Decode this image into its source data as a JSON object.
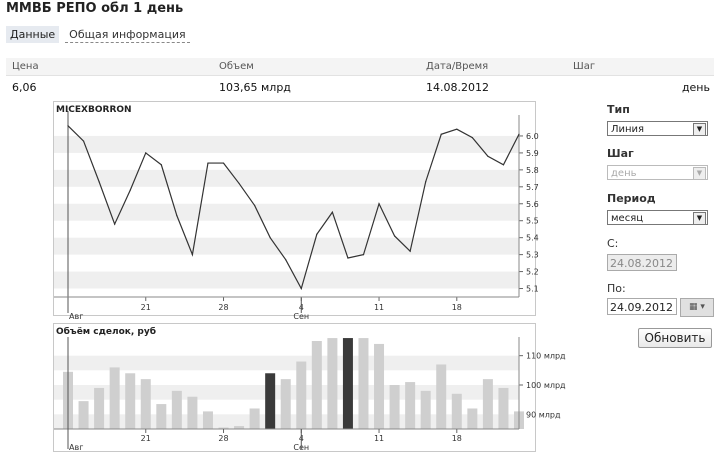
{
  "page": {
    "title": "ММВБ РЕПО обл 1 день",
    "tabs": [
      {
        "label": "Данные",
        "active": true
      },
      {
        "label": "Общая информация",
        "active": false
      }
    ]
  },
  "stats": {
    "headers": [
      "Цена",
      "Объем",
      "Дата/Время",
      "Шаг"
    ],
    "values": [
      "6,06",
      "103,65 млрд",
      "14.08.2012",
      "день"
    ]
  },
  "sidebar": {
    "type_label": "Тип",
    "type_value": "Линия",
    "step_label": "Шаг",
    "step_value": "день",
    "period_label": "Период",
    "period_value": "месяц",
    "from_label": "С:",
    "from_value": "24.08.2012",
    "to_label": "По:",
    "to_value": "24.09.2012",
    "refresh_label": "Обновить",
    "dropdown_icon": "chevron-down-icon",
    "calendar_icon": "calendar-icon"
  },
  "colors": {
    "line": "#333333",
    "bar": "#cfcfcf",
    "bar_highlight": "#3a3a3a",
    "band": "#efefef"
  },
  "chart_data": [
    {
      "type": "line",
      "title": "MICEXBORRON",
      "x_ticks": [
        "Авг",
        "21",
        "28",
        "4",
        "Сен",
        "11",
        "18"
      ],
      "ylim": [
        5.05,
        6.1
      ],
      "y_ticks": [
        "6.0",
        "5.9",
        "5.8",
        "5.7",
        "5.6",
        "5.5",
        "5.4",
        "5.3",
        "5.2",
        "5.1"
      ],
      "values": [
        6.06,
        5.97,
        5.73,
        5.48,
        5.68,
        5.9,
        5.83,
        5.53,
        5.3,
        5.84,
        5.84,
        5.72,
        5.59,
        5.4,
        5.27,
        5.1,
        5.42,
        5.55,
        5.28,
        5.3,
        5.6,
        5.41,
        5.32,
        5.73,
        6.01,
        6.04,
        5.99,
        5.88,
        5.83,
        6.01
      ]
    },
    {
      "type": "bar",
      "title": "Объём сделок, руб",
      "x_ticks": [
        "Авг",
        "21",
        "28",
        "4",
        "Сен",
        "11",
        "18"
      ],
      "ylim": [
        85,
        115
      ],
      "y_ticks": [
        "110 млрд",
        "100 млрд",
        "90 млрд"
      ],
      "values": [
        104.5,
        94.5,
        99,
        106,
        104,
        102,
        93.5,
        98,
        96,
        91,
        85.5,
        86,
        92,
        104,
        102,
        108,
        115,
        116,
        116,
        116,
        114,
        100,
        101,
        98,
        107,
        97,
        92,
        102,
        99,
        91
      ],
      "highlighted": [
        13,
        18
      ]
    }
  ]
}
